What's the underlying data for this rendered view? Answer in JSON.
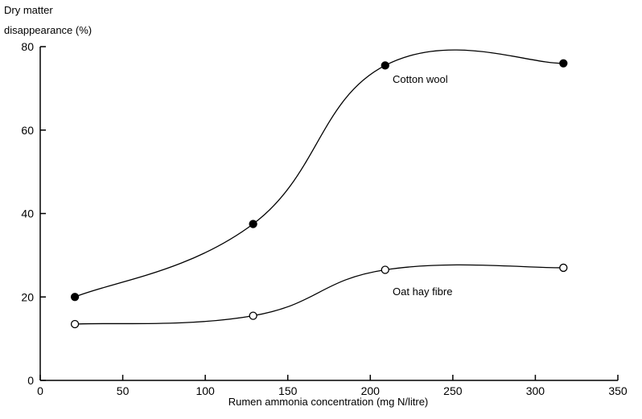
{
  "chart_data": {
    "type": "line",
    "ylabel_line1": "Dry matter",
    "ylabel_line2": "disappearance (%)",
    "xlabel": "Rumen ammonia concentration (mg N/litre)",
    "xlim": [
      0,
      350
    ],
    "ylim": [
      0,
      80
    ],
    "xticks": [
      0,
      50,
      100,
      150,
      200,
      250,
      300,
      350
    ],
    "yticks": [
      0,
      20,
      40,
      60,
      80
    ],
    "grid": false,
    "series": [
      {
        "name": "Cotton wool",
        "marker": "filled-circle",
        "color": "#000000",
        "x": [
          21,
          129,
          209,
          317
        ],
        "y": [
          20,
          37.5,
          75.5,
          76
        ]
      },
      {
        "name": "Oat hay fibre",
        "marker": "open-circle",
        "color": "#000000",
        "x": [
          21,
          129,
          209,
          317
        ],
        "y": [
          13.5,
          15.5,
          26.5,
          27
        ]
      }
    ]
  }
}
